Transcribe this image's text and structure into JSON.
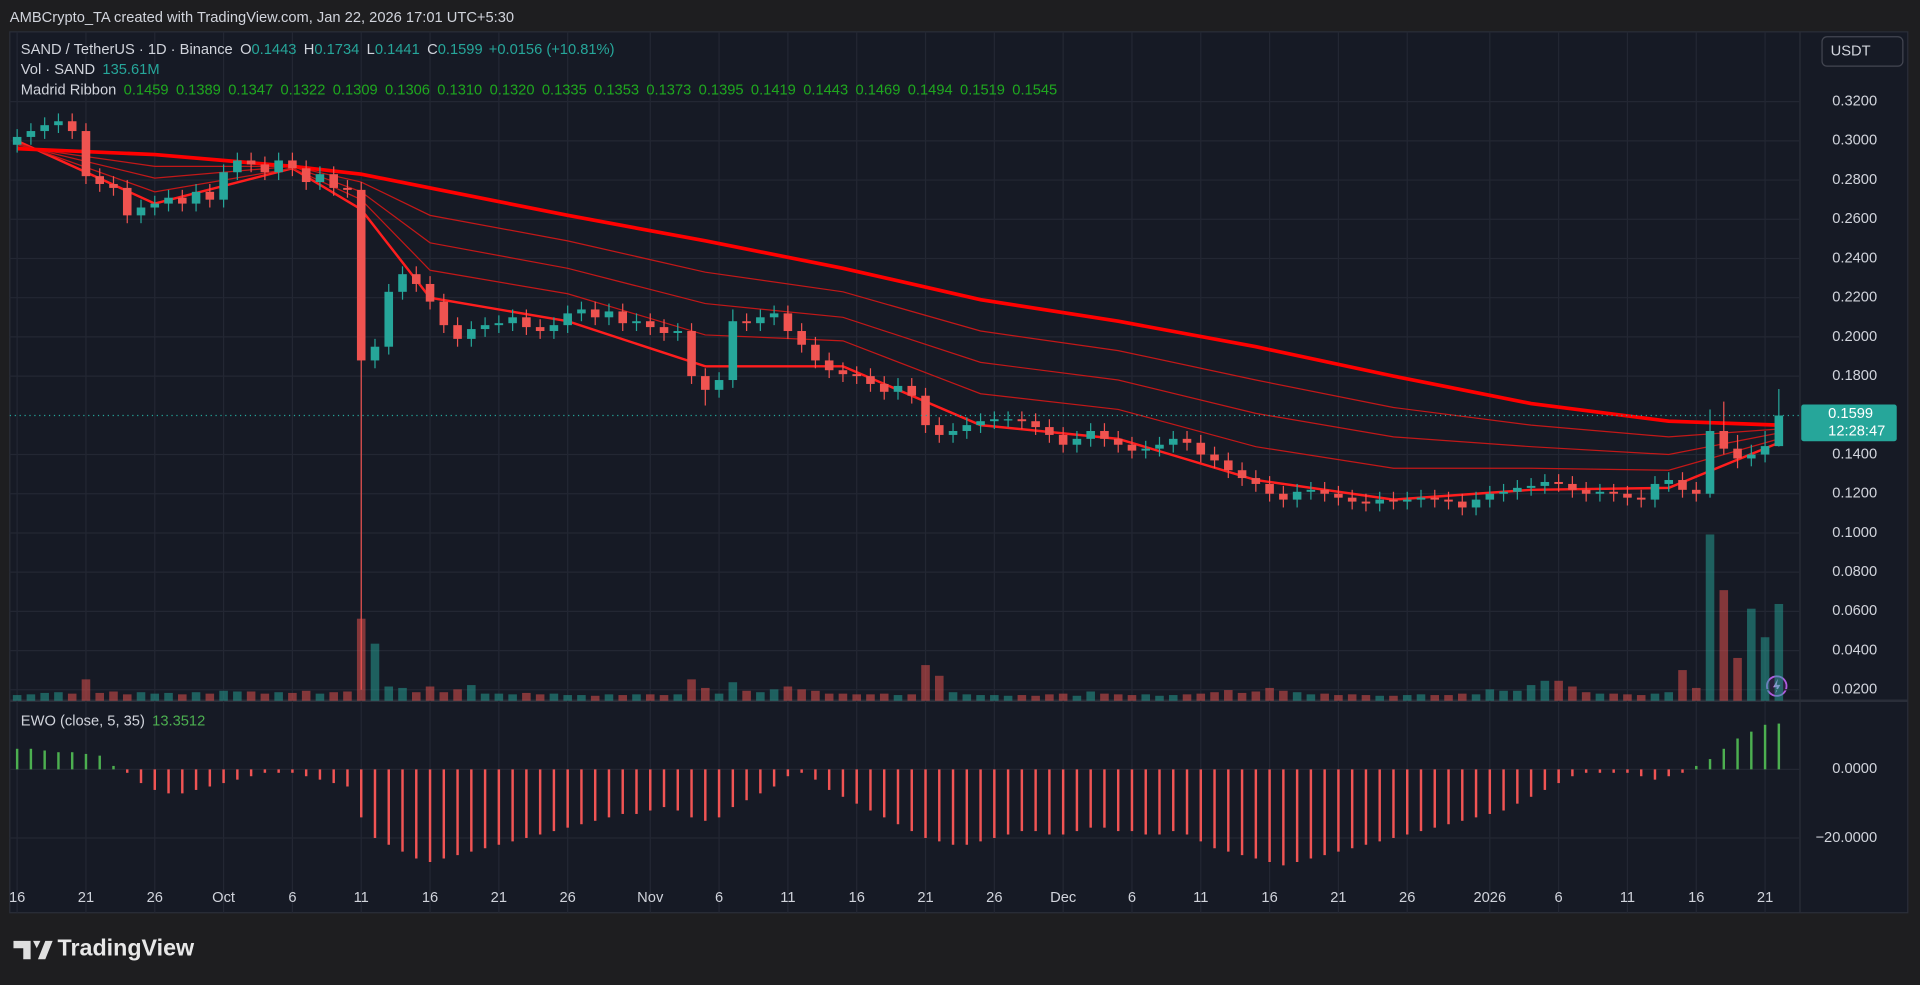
{
  "watermark_header": "AMBCrypto_TA created with TradingView.com, Jan 22, 2026 17:01 UTC+5:30",
  "currency_button": "USDT",
  "logo": "TradingView",
  "chart_data": {
    "type": "candlestick",
    "title": "SAND / TetherUS · 1D · Binance",
    "ohlc_legend": [
      {
        "label": "O",
        "value": "0.1443"
      },
      {
        "label": "H",
        "value": "0.1734"
      },
      {
        "label": "L",
        "value": "0.1441"
      },
      {
        "label": "C",
        "value": "0.1599"
      }
    ],
    "change": "+0.0156 (+10.81%)",
    "volume_title": "Vol · SAND",
    "volume_value": "135.61M",
    "ribbon_title": "Madrid Ribbon",
    "ribbon_values": [
      "0.1459",
      "0.1389",
      "0.1347",
      "0.1322",
      "0.1309",
      "0.1306",
      "0.1310",
      "0.1320",
      "0.1335",
      "0.1353",
      "0.1373",
      "0.1395",
      "0.1419",
      "0.1443",
      "0.1469",
      "0.1494",
      "0.1519",
      "0.1545"
    ],
    "ewo_title": "EWO (close, 5, 35)",
    "ewo_value": "13.3512",
    "last_price_label": "0.1599",
    "countdown": "12:28:47",
    "up_color": "#26a69a",
    "down_color": "#ef5350",
    "open": [
      0.298,
      0.302,
      0.305,
      0.308,
      0.31,
      0.305,
      0.282,
      0.278,
      0.276,
      0.262,
      0.266,
      0.268,
      0.271,
      0.268,
      0.274,
      0.27,
      0.284,
      0.29,
      0.288,
      0.284,
      0.29,
      0.286,
      0.279,
      0.283,
      0.276,
      0.275,
      0.188,
      0.195,
      0.223,
      0.232,
      0.227,
      0.218,
      0.206,
      0.199,
      0.204,
      0.206,
      0.207,
      0.21,
      0.205,
      0.203,
      0.206,
      0.212,
      0.214,
      0.21,
      0.213,
      0.207,
      0.208,
      0.205,
      0.202,
      0.203,
      0.18,
      0.173,
      0.178,
      0.208,
      0.207,
      0.21,
      0.212,
      0.203,
      0.196,
      0.188,
      0.183,
      0.181,
      0.18,
      0.176,
      0.172,
      0.175,
      0.17,
      0.155,
      0.15,
      0.152,
      0.155,
      0.157,
      0.158,
      0.158,
      0.157,
      0.154,
      0.15,
      0.145,
      0.148,
      0.152,
      0.148,
      0.145,
      0.142,
      0.143,
      0.145,
      0.148,
      0.146,
      0.14,
      0.137,
      0.132,
      0.128,
      0.125,
      0.12,
      0.117,
      0.121,
      0.122,
      0.12,
      0.118,
      0.116,
      0.115,
      0.117,
      0.116,
      0.117,
      0.118,
      0.117,
      0.116,
      0.113,
      0.117,
      0.12,
      0.121,
      0.123,
      0.124,
      0.126,
      0.125,
      0.122,
      0.12,
      0.121,
      0.12,
      0.118,
      0.117,
      0.125,
      0.127,
      0.122,
      0.12,
      0.152,
      0.143,
      0.138,
      0.14,
      0.1443
    ],
    "high": [
      0.306,
      0.309,
      0.312,
      0.314,
      0.314,
      0.309,
      0.286,
      0.282,
      0.28,
      0.27,
      0.272,
      0.275,
      0.275,
      0.278,
      0.278,
      0.288,
      0.294,
      0.294,
      0.292,
      0.294,
      0.294,
      0.29,
      0.287,
      0.287,
      0.28,
      0.279,
      0.199,
      0.227,
      0.236,
      0.236,
      0.231,
      0.222,
      0.21,
      0.208,
      0.21,
      0.211,
      0.214,
      0.214,
      0.209,
      0.21,
      0.216,
      0.218,
      0.218,
      0.217,
      0.217,
      0.212,
      0.212,
      0.209,
      0.207,
      0.207,
      0.184,
      0.182,
      0.214,
      0.212,
      0.214,
      0.216,
      0.216,
      0.207,
      0.2,
      0.192,
      0.187,
      0.185,
      0.184,
      0.18,
      0.179,
      0.179,
      0.174,
      0.159,
      0.156,
      0.159,
      0.161,
      0.162,
      0.162,
      0.162,
      0.161,
      0.158,
      0.154,
      0.152,
      0.156,
      0.156,
      0.152,
      0.149,
      0.147,
      0.149,
      0.152,
      0.152,
      0.15,
      0.144,
      0.141,
      0.136,
      0.132,
      0.129,
      0.124,
      0.125,
      0.126,
      0.126,
      0.124,
      0.122,
      0.12,
      0.121,
      0.121,
      0.121,
      0.122,
      0.122,
      0.121,
      0.12,
      0.121,
      0.124,
      0.125,
      0.127,
      0.128,
      0.13,
      0.13,
      0.129,
      0.126,
      0.125,
      0.125,
      0.124,
      0.122,
      0.129,
      0.131,
      0.131,
      0.126,
      0.163,
      0.167,
      0.15,
      0.145,
      0.152,
      0.1734
    ],
    "low": [
      0.294,
      0.298,
      0.301,
      0.304,
      0.301,
      0.278,
      0.274,
      0.272,
      0.258,
      0.258,
      0.262,
      0.264,
      0.264,
      0.264,
      0.266,
      0.266,
      0.28,
      0.284,
      0.28,
      0.28,
      0.282,
      0.275,
      0.275,
      0.272,
      0.271,
      0.02,
      0.184,
      0.191,
      0.219,
      0.223,
      0.214,
      0.202,
      0.195,
      0.195,
      0.2,
      0.202,
      0.203,
      0.201,
      0.199,
      0.199,
      0.202,
      0.208,
      0.206,
      0.206,
      0.203,
      0.203,
      0.201,
      0.198,
      0.198,
      0.176,
      0.165,
      0.169,
      0.174,
      0.203,
      0.203,
      0.206,
      0.199,
      0.192,
      0.184,
      0.179,
      0.177,
      0.176,
      0.172,
      0.168,
      0.168,
      0.166,
      0.151,
      0.146,
      0.146,
      0.148,
      0.151,
      0.153,
      0.154,
      0.153,
      0.15,
      0.146,
      0.141,
      0.141,
      0.144,
      0.144,
      0.141,
      0.138,
      0.138,
      0.139,
      0.141,
      0.142,
      0.136,
      0.133,
      0.128,
      0.124,
      0.121,
      0.116,
      0.113,
      0.113,
      0.117,
      0.116,
      0.114,
      0.112,
      0.111,
      0.111,
      0.112,
      0.112,
      0.113,
      0.113,
      0.112,
      0.109,
      0.109,
      0.113,
      0.116,
      0.117,
      0.119,
      0.12,
      0.121,
      0.118,
      0.116,
      0.116,
      0.116,
      0.114,
      0.113,
      0.113,
      0.121,
      0.118,
      0.116,
      0.118,
      0.14,
      0.133,
      0.134,
      0.136,
      0.1441
    ],
    "close": [
      0.302,
      0.305,
      0.308,
      0.31,
      0.305,
      0.282,
      0.278,
      0.276,
      0.262,
      0.266,
      0.268,
      0.271,
      0.268,
      0.274,
      0.27,
      0.284,
      0.29,
      0.288,
      0.284,
      0.29,
      0.286,
      0.279,
      0.283,
      0.276,
      0.275,
      0.188,
      0.195,
      0.223,
      0.232,
      0.227,
      0.218,
      0.206,
      0.199,
      0.204,
      0.206,
      0.207,
      0.21,
      0.205,
      0.203,
      0.206,
      0.212,
      0.214,
      0.21,
      0.213,
      0.207,
      0.208,
      0.205,
      0.202,
      0.203,
      0.18,
      0.173,
      0.178,
      0.208,
      0.207,
      0.21,
      0.212,
      0.203,
      0.196,
      0.188,
      0.183,
      0.181,
      0.18,
      0.176,
      0.172,
      0.175,
      0.17,
      0.155,
      0.15,
      0.152,
      0.155,
      0.157,
      0.158,
      0.158,
      0.157,
      0.154,
      0.15,
      0.145,
      0.148,
      0.152,
      0.148,
      0.145,
      0.142,
      0.143,
      0.145,
      0.148,
      0.146,
      0.14,
      0.137,
      0.132,
      0.128,
      0.125,
      0.12,
      0.117,
      0.121,
      0.122,
      0.12,
      0.118,
      0.116,
      0.115,
      0.117,
      0.116,
      0.117,
      0.118,
      0.117,
      0.116,
      0.113,
      0.117,
      0.12,
      0.121,
      0.123,
      0.124,
      0.126,
      0.125,
      0.122,
      0.12,
      0.121,
      0.12,
      0.118,
      0.117,
      0.125,
      0.127,
      0.122,
      0.12,
      0.152,
      0.143,
      0.138,
      0.14,
      0.1443,
      0.1599
    ],
    "volume": [
      8,
      9,
      11,
      12,
      10,
      30,
      11,
      13,
      9,
      12,
      10,
      11,
      9,
      12,
      10,
      14,
      13,
      13,
      10,
      12,
      11,
      14,
      10,
      12,
      13,
      115,
      80,
      20,
      18,
      12,
      20,
      12,
      16,
      22,
      10,
      10,
      9,
      11,
      9,
      10,
      8,
      8,
      7,
      9,
      8,
      9,
      9,
      8,
      9,
      30,
      18,
      10,
      26,
      14,
      12,
      16,
      20,
      16,
      14,
      10,
      10,
      9,
      9,
      10,
      8,
      9,
      50,
      35,
      12,
      9,
      8,
      8,
      7,
      8,
      7,
      9,
      10,
      7,
      13,
      10,
      9,
      8,
      9,
      7,
      8,
      9,
      10,
      12,
      15,
      11,
      13,
      18,
      14,
      12,
      9,
      10,
      8,
      9,
      8,
      7,
      7,
      8,
      9,
      8,
      8,
      10,
      9,
      16,
      14,
      14,
      22,
      28,
      28,
      20,
      12,
      10,
      10,
      9,
      8,
      10,
      12,
      43,
      18,
      233,
      155,
      60,
      129,
      89,
      135.61
    ],
    "ylim": [
      0.0144,
      0.3556
    ],
    "yticks": [
      {
        "value": 0.32,
        "label": "0.3200"
      },
      {
        "value": 0.3,
        "label": "0.3000"
      },
      {
        "value": 0.28,
        "label": "0.2800"
      },
      {
        "value": 0.26,
        "label": "0.2600"
      },
      {
        "value": 0.24,
        "label": "0.2400"
      },
      {
        "value": 0.22,
        "label": "0.2200"
      },
      {
        "value": 0.2,
        "label": "0.2000"
      },
      {
        "value": 0.18,
        "label": "0.1800"
      },
      {
        "value": 0.14,
        "label": "0.1400"
      },
      {
        "value": 0.12,
        "label": "0.1200"
      },
      {
        "value": 0.1,
        "label": "0.1000"
      },
      {
        "value": 0.08,
        "label": "0.0800"
      },
      {
        "value": 0.06,
        "label": "0.0600"
      },
      {
        "value": 0.04,
        "label": "0.0400"
      },
      {
        "value": 0.02,
        "label": "0.0200"
      }
    ],
    "xticks": [
      {
        "value": 0,
        "label": "16"
      },
      {
        "value": 5,
        "label": "21"
      },
      {
        "value": 10,
        "label": "26"
      },
      {
        "value": 15,
        "label": "Oct"
      },
      {
        "value": 20,
        "label": "6"
      },
      {
        "value": 25,
        "label": "11"
      },
      {
        "value": 30,
        "label": "16"
      },
      {
        "value": 35,
        "label": "21"
      },
      {
        "value": 40,
        "label": "26"
      },
      {
        "value": 46,
        "label": "Nov"
      },
      {
        "value": 51,
        "label": "6"
      },
      {
        "value": 56,
        "label": "11"
      },
      {
        "value": 61,
        "label": "16"
      },
      {
        "value": 66,
        "label": "21"
      },
      {
        "value": 71,
        "label": "26"
      },
      {
        "value": 76,
        "label": "Dec"
      },
      {
        "value": 81,
        "label": "6"
      },
      {
        "value": 86,
        "label": "11"
      },
      {
        "value": 91,
        "label": "16"
      },
      {
        "value": 96,
        "label": "21"
      },
      {
        "value": 101,
        "label": "26"
      },
      {
        "value": 107,
        "label": "2026"
      },
      {
        "value": 112,
        "label": "6"
      },
      {
        "value": 117,
        "label": "11"
      },
      {
        "value": 122,
        "label": "16"
      },
      {
        "value": 127,
        "label": "21"
      }
    ],
    "ribbon": {
      "x": [
        0,
        10,
        20,
        25,
        30,
        40,
        50,
        60,
        70,
        80,
        90,
        100,
        110,
        120,
        128
      ],
      "lines": [
        {
          "color": "#ff1e1e",
          "values": [
            0.3,
            0.268,
            0.286,
            0.265,
            0.22,
            0.208,
            0.185,
            0.185,
            0.155,
            0.148,
            0.127,
            0.117,
            0.122,
            0.123,
            0.146
          ]
        },
        {
          "color": "#c21818",
          "values": [
            0.299,
            0.274,
            0.286,
            0.27,
            0.234,
            0.222,
            0.201,
            0.198,
            0.171,
            0.163,
            0.144,
            0.133,
            0.133,
            0.132,
            0.148
          ]
        },
        {
          "color": "#c21818",
          "values": [
            0.298,
            0.281,
            0.287,
            0.274,
            0.248,
            0.235,
            0.217,
            0.21,
            0.187,
            0.178,
            0.161,
            0.149,
            0.144,
            0.14,
            0.151
          ]
        },
        {
          "color": "#c21818",
          "values": [
            0.297,
            0.287,
            0.287,
            0.279,
            0.262,
            0.249,
            0.233,
            0.223,
            0.203,
            0.193,
            0.178,
            0.164,
            0.155,
            0.149,
            0.153
          ]
        },
        {
          "color": "#ff0000",
          "values": [
            0.296,
            0.293,
            0.287,
            0.283,
            0.276,
            0.262,
            0.249,
            0.235,
            0.219,
            0.208,
            0.195,
            0.18,
            0.166,
            0.157,
            0.155
          ]
        }
      ]
    },
    "ewo": {
      "up_color": "#4caf50",
      "down_color": "#f05454",
      "ylim": [
        -41.8,
        20
      ],
      "yticks": [
        {
          "value": 0,
          "label": "0.0000"
        },
        {
          "value": -20,
          "label": "−20.0000"
        }
      ],
      "values": [
        6,
        6,
        5.5,
        5,
        5,
        4.5,
        4,
        1,
        -1,
        -4,
        -6,
        -7,
        -7,
        -6,
        -5,
        -4,
        -3,
        -2,
        -1,
        -1,
        -1,
        -2,
        -3,
        -4,
        -5,
        -14,
        -20,
        -22,
        -24,
        -26,
        -27,
        -26,
        -25,
        -24,
        -23,
        -22,
        -21,
        -20,
        -19,
        -18,
        -17,
        -16,
        -15,
        -14,
        -13,
        -13,
        -12,
        -11,
        -12,
        -14,
        -15,
        -14,
        -11,
        -9,
        -7,
        -5,
        -2,
        -1,
        -3,
        -6,
        -8,
        -10,
        -12,
        -14,
        -16,
        -18,
        -20,
        -21,
        -22,
        -22,
        -21,
        -20,
        -19,
        -18,
        -18,
        -19,
        -19,
        -18,
        -17,
        -17,
        -18,
        -18,
        -19,
        -19,
        -18,
        -19,
        -21,
        -23,
        -24,
        -25,
        -26,
        -27,
        -28,
        -27,
        -26,
        -25,
        -24,
        -23,
        -22,
        -21,
        -20,
        -19,
        -18,
        -17,
        -16,
        -15,
        -14,
        -13,
        -12,
        -10,
        -8,
        -6,
        -4,
        -2,
        -1,
        -1,
        -1,
        -1,
        -2,
        -3,
        -2,
        -1,
        1,
        3,
        6,
        9,
        11,
        13,
        13.3512
      ]
    }
  }
}
